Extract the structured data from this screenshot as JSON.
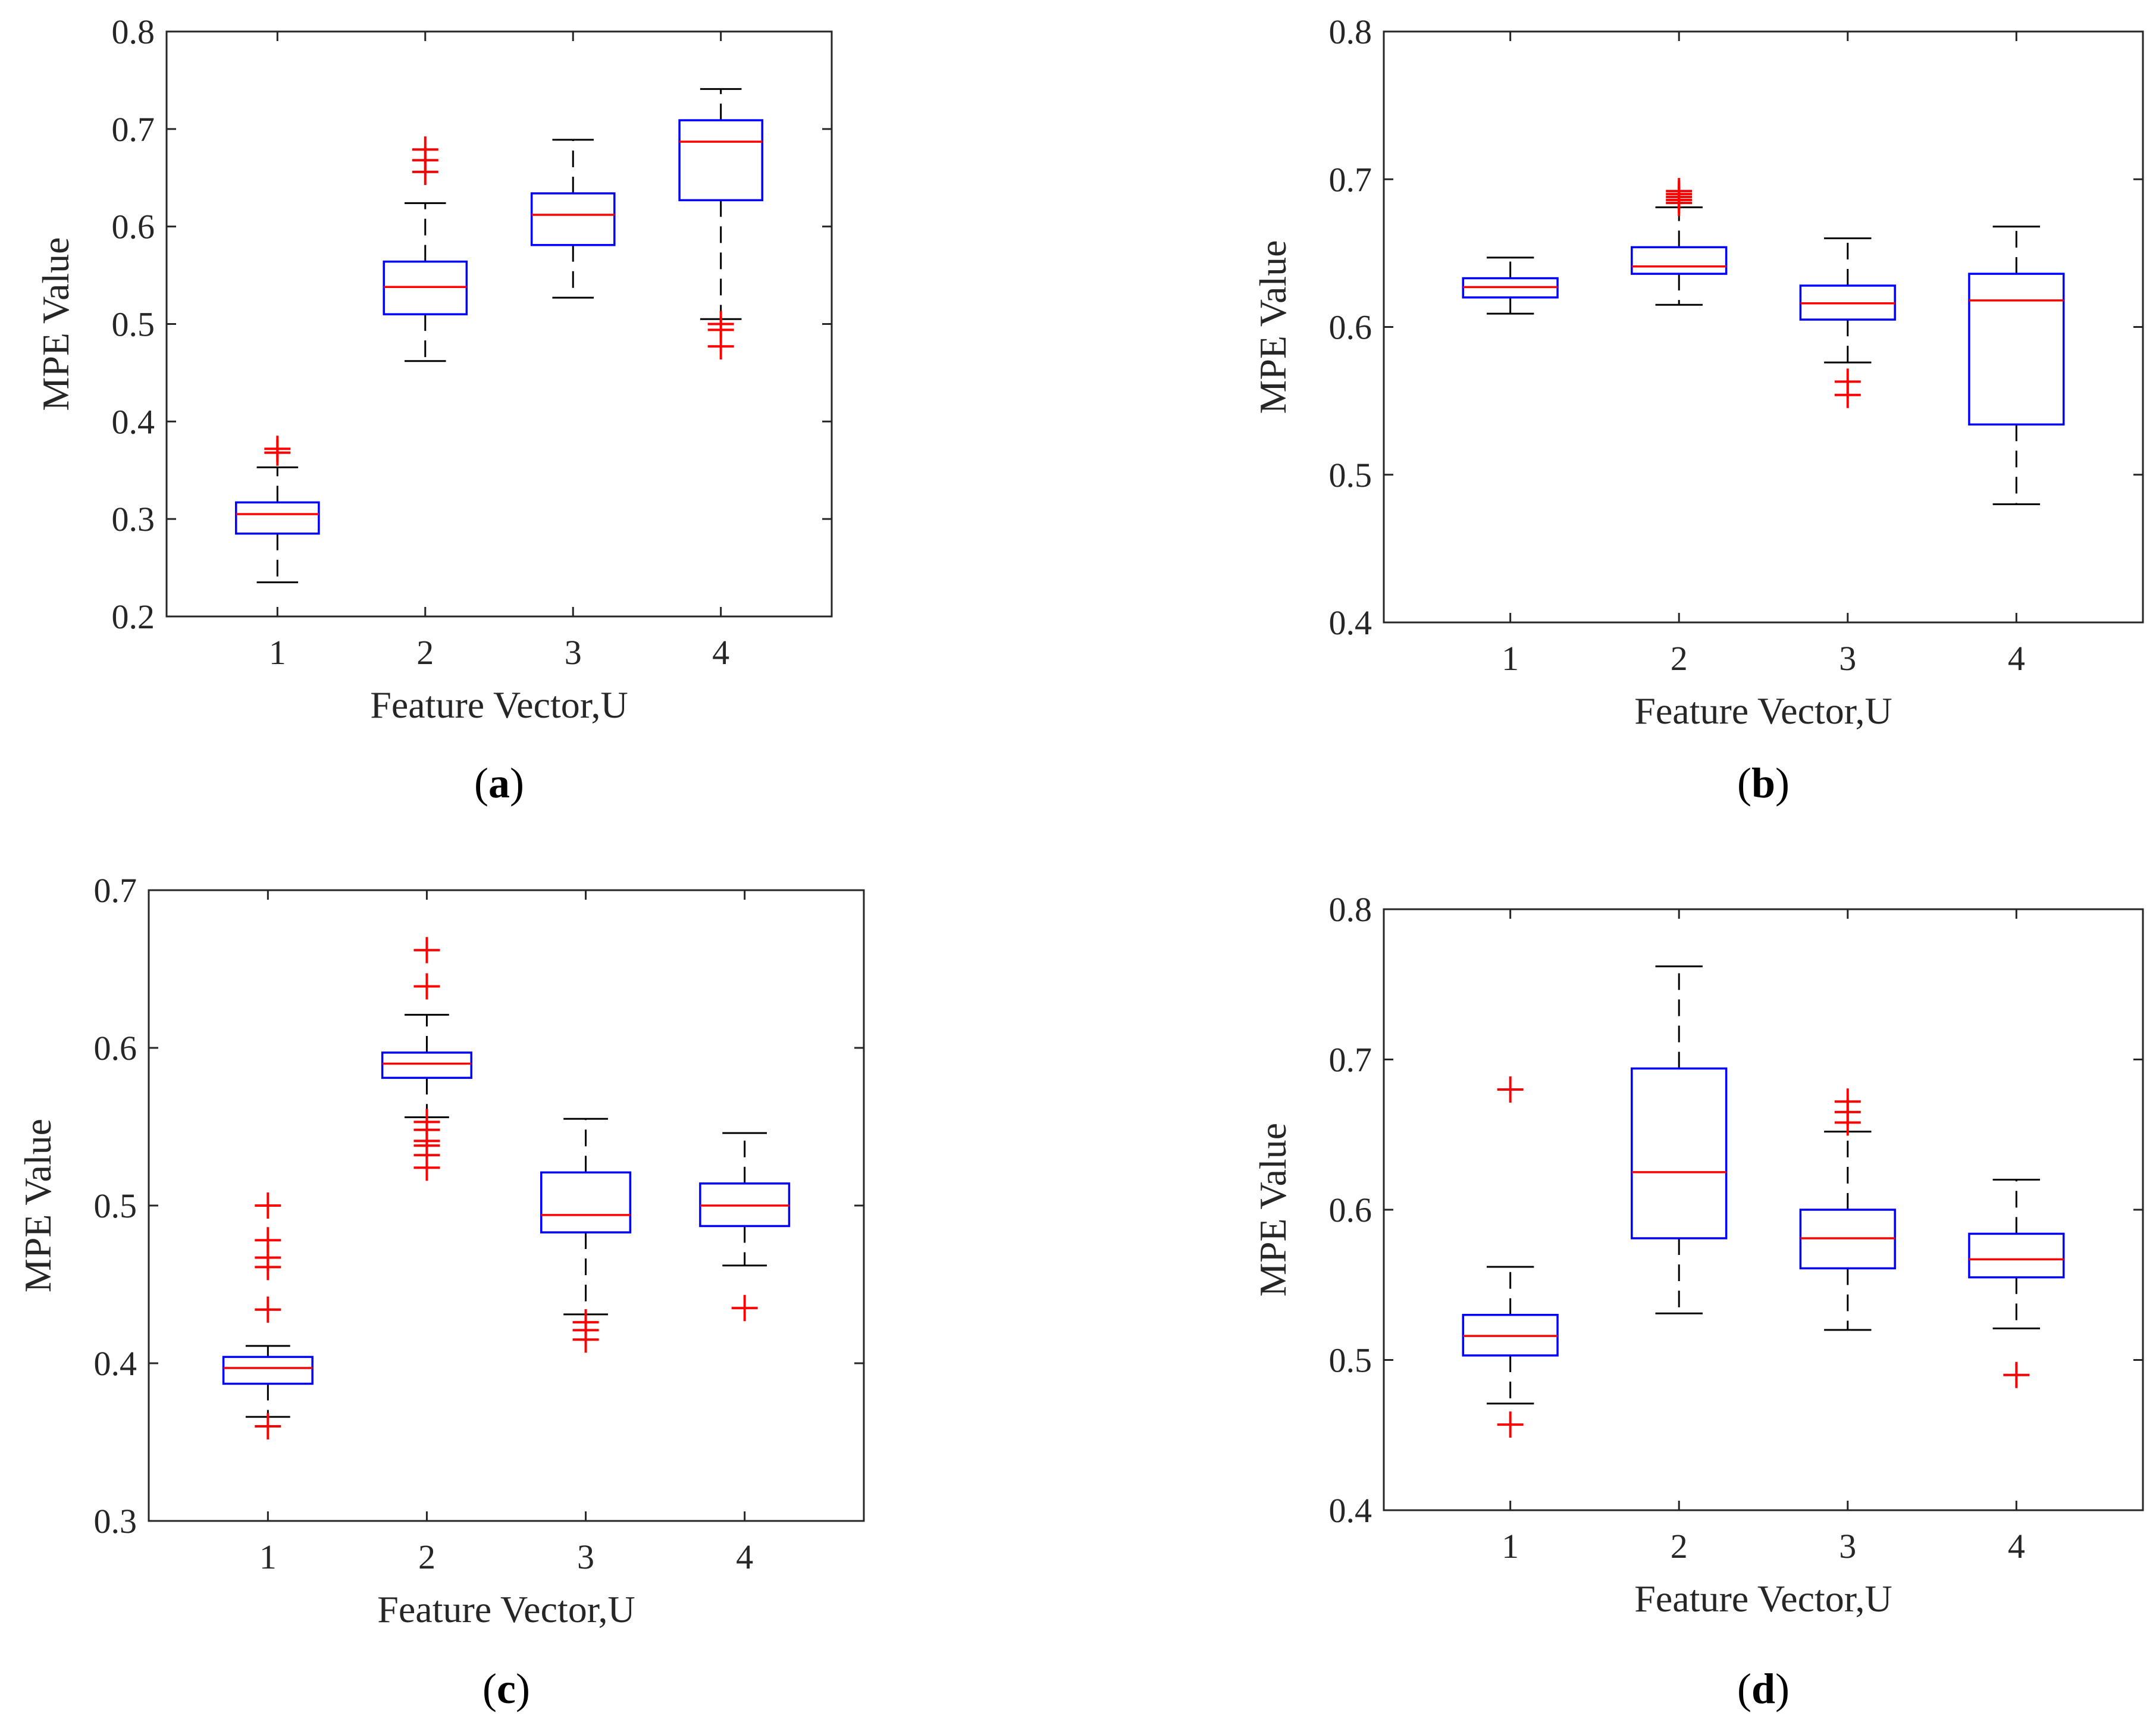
{
  "figure": {
    "panels": [
      "(a)",
      "(b)",
      "(c)",
      "(d)"
    ]
  },
  "colors": {
    "box": "#0000ff",
    "median": "#ff0000",
    "whisker": "#000000",
    "outlier": "#ff0000",
    "axis": "#262626"
  },
  "chart_data": [
    {
      "type": "box",
      "panel": "(a)",
      "xlabel": "Feature Vector,U",
      "ylabel": "MPE Value",
      "categories": [
        "1",
        "2",
        "3",
        "4"
      ],
      "ylim": [
        0.2,
        0.8
      ],
      "yticks": [
        "0.2",
        "0.3",
        "0.4",
        "0.5",
        "0.6",
        "0.7",
        "0.8"
      ],
      "ytick_values": [
        0.2,
        0.3,
        0.4,
        0.5,
        0.6,
        0.7,
        0.8
      ],
      "boxes": [
        {
          "q1": 0.285,
          "median": 0.305,
          "q3": 0.317,
          "whisker_low": 0.235,
          "whisker_high": 0.353,
          "outliers": [
            0.368,
            0.372
          ]
        },
        {
          "q1": 0.51,
          "median": 0.538,
          "q3": 0.564,
          "whisker_low": 0.462,
          "whisker_high": 0.624,
          "outliers": [
            0.656,
            0.668,
            0.679
          ]
        },
        {
          "q1": 0.581,
          "median": 0.612,
          "q3": 0.634,
          "whisker_low": 0.527,
          "whisker_high": 0.689,
          "outliers": []
        },
        {
          "q1": 0.627,
          "median": 0.687,
          "q3": 0.709,
          "whisker_low": 0.505,
          "whisker_high": 0.741,
          "outliers": [
            0.477,
            0.494,
            0.5
          ]
        }
      ]
    },
    {
      "type": "box",
      "panel": "(b)",
      "xlabel": "Feature Vector,U",
      "ylabel": "MPE Value",
      "categories": [
        "1",
        "2",
        "3",
        "4"
      ],
      "ylim": [
        0.4,
        0.8
      ],
      "yticks": [
        "0.4",
        "0.5",
        "0.6",
        "0.7",
        "0.8"
      ],
      "ytick_values": [
        0.4,
        0.5,
        0.6,
        0.7,
        0.8
      ],
      "boxes": [
        {
          "q1": 0.62,
          "median": 0.627,
          "q3": 0.633,
          "whisker_low": 0.609,
          "whisker_high": 0.647,
          "outliers": []
        },
        {
          "q1": 0.636,
          "median": 0.641,
          "q3": 0.654,
          "whisker_low": 0.615,
          "whisker_high": 0.681,
          "outliers": [
            0.684,
            0.686,
            0.688,
            0.69,
            0.692
          ]
        },
        {
          "q1": 0.605,
          "median": 0.616,
          "q3": 0.628,
          "whisker_low": 0.576,
          "whisker_high": 0.66,
          "outliers": [
            0.554,
            0.563
          ]
        },
        {
          "q1": 0.534,
          "median": 0.618,
          "q3": 0.636,
          "whisker_low": 0.48,
          "whisker_high": 0.668,
          "outliers": []
        }
      ]
    },
    {
      "type": "box",
      "panel": "(c)",
      "xlabel": "Feature Vector,U",
      "ylabel": "MPE Value",
      "categories": [
        "1",
        "2",
        "3",
        "4"
      ],
      "ylim": [
        0.3,
        0.7
      ],
      "yticks": [
        "0.3",
        "0.4",
        "0.5",
        "0.6",
        "0.7"
      ],
      "ytick_values": [
        0.3,
        0.4,
        0.5,
        0.6,
        0.7
      ],
      "boxes": [
        {
          "q1": 0.387,
          "median": 0.397,
          "q3": 0.404,
          "whisker_low": 0.366,
          "whisker_high": 0.411,
          "outliers": [
            0.36,
            0.434,
            0.461,
            0.467,
            0.478,
            0.5
          ]
        },
        {
          "q1": 0.581,
          "median": 0.59,
          "q3": 0.597,
          "whisker_low": 0.556,
          "whisker_high": 0.621,
          "outliers": [
            0.524,
            0.532,
            0.538,
            0.541,
            0.548,
            0.553,
            0.639,
            0.662
          ]
        },
        {
          "q1": 0.483,
          "median": 0.494,
          "q3": 0.521,
          "whisker_low": 0.431,
          "whisker_high": 0.555,
          "outliers": [
            0.415,
            0.421,
            0.426
          ]
        },
        {
          "q1": 0.487,
          "median": 0.5,
          "q3": 0.514,
          "whisker_low": 0.462,
          "whisker_high": 0.546,
          "outliers": [
            0.435
          ]
        }
      ]
    },
    {
      "type": "box",
      "panel": "(d)",
      "xlabel": "Feature Vector,U",
      "ylabel": "MPE Value",
      "categories": [
        "1",
        "2",
        "3",
        "4"
      ],
      "ylim": [
        0.4,
        0.8
      ],
      "yticks": [
        "0.4",
        "0.5",
        "0.6",
        "0.7",
        "0.8"
      ],
      "ytick_values": [
        0.4,
        0.5,
        0.6,
        0.7,
        0.8
      ],
      "boxes": [
        {
          "q1": 0.503,
          "median": 0.516,
          "q3": 0.53,
          "whisker_low": 0.471,
          "whisker_high": 0.562,
          "outliers": [
            0.457,
            0.68
          ]
        },
        {
          "q1": 0.581,
          "median": 0.625,
          "q3": 0.694,
          "whisker_low": 0.531,
          "whisker_high": 0.762,
          "outliers": []
        },
        {
          "q1": 0.561,
          "median": 0.581,
          "q3": 0.6,
          "whisker_low": 0.52,
          "whisker_high": 0.652,
          "outliers": [
            0.658,
            0.665,
            0.672
          ]
        },
        {
          "q1": 0.555,
          "median": 0.567,
          "q3": 0.584,
          "whisker_low": 0.521,
          "whisker_high": 0.62,
          "outliers": [
            0.49
          ]
        }
      ]
    }
  ]
}
